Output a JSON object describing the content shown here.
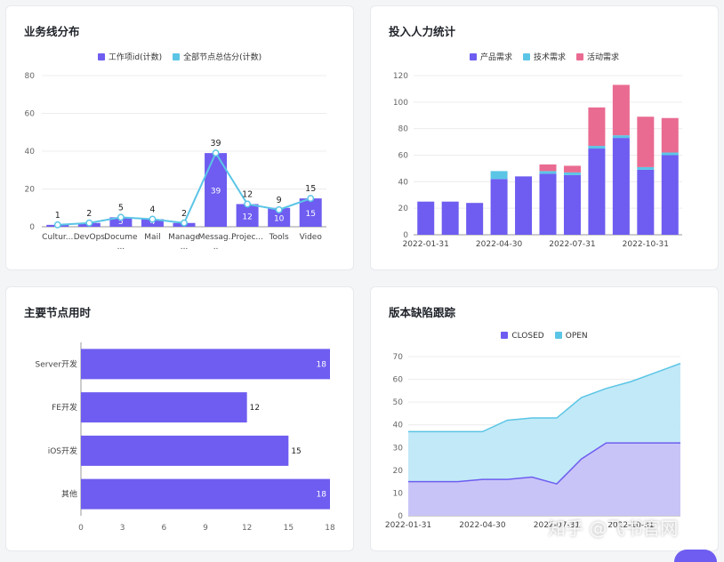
{
  "watermark": "知乎 @飞书官网",
  "colors": {
    "purple": "#6e5df0",
    "cyan": "#5bc5e6",
    "pink": "#e96b92",
    "light_purple": "#c9c2f7",
    "light_cyan": "#bfe8f7"
  },
  "cards": {
    "business": {
      "title": "业务线分布"
    },
    "manpower": {
      "title": "投入人力统计"
    },
    "nodes": {
      "title": "主要节点用时"
    },
    "defects": {
      "title": "版本缺陷跟踪"
    }
  },
  "chart_data": [
    {
      "id": "business",
      "type": "bar",
      "title": "业务线分布",
      "categories": [
        "Cultur...",
        "DevOps",
        "Docume\n...",
        "Mail",
        "Manage\n...",
        "Messag..\n..",
        "Projec...",
        "Tools",
        "Video"
      ],
      "series": [
        {
          "name": "工作项id(计数)",
          "type": "bar",
          "values": [
            1,
            2,
            5,
            4,
            2,
            39,
            12,
            10,
            15
          ],
          "color": "#6e5df0"
        },
        {
          "name": "全部节点总估分(计数)",
          "type": "line",
          "values": [
            1,
            2,
            5,
            4,
            2,
            39,
            12,
            9,
            15
          ],
          "color": "#5bc5e6"
        }
      ],
      "ylim": [
        0,
        80
      ],
      "yticks": [
        0,
        20,
        40,
        60,
        80
      ],
      "legend": "top-center",
      "grid": true
    },
    {
      "id": "manpower",
      "type": "bar",
      "stacked": true,
      "title": "投入人力统计",
      "categories": [
        "2022-01-31",
        "2022-02-28",
        "2022-03-31",
        "2022-04-30",
        "2022-05-31",
        "2022-06-30",
        "2022-07-31",
        "2022-08-31",
        "2022-09-30",
        "2022-10-31",
        "2022-11-30"
      ],
      "xtick_labels": [
        "2022-01-31",
        "2022-04-30",
        "2022-07-31",
        "2022-10-31"
      ],
      "series": [
        {
          "name": "产品需求",
          "values": [
            25,
            25,
            24,
            42,
            44,
            46,
            45,
            65,
            73,
            49,
            60
          ],
          "color": "#6e5df0"
        },
        {
          "name": "技术需求",
          "values": [
            0,
            0,
            0,
            6,
            0,
            2,
            2,
            2,
            2,
            2,
            2
          ],
          "color": "#5bc5e6"
        },
        {
          "name": "活动需求",
          "values": [
            0,
            0,
            0,
            0,
            0,
            5,
            5,
            29,
            38,
            38,
            26
          ],
          "color": "#e96b92"
        }
      ],
      "ylim": [
        0,
        120
      ],
      "yticks": [
        0,
        20,
        40,
        60,
        80,
        100,
        120
      ],
      "legend": "top-center",
      "grid": true
    },
    {
      "id": "nodes",
      "type": "bar",
      "orientation": "horizontal",
      "title": "主要节点用时",
      "categories": [
        "Server开发",
        "FE开发",
        "iOS开发",
        "其他"
      ],
      "values": [
        18,
        12,
        15,
        18
      ],
      "color": "#6e5df0",
      "xlim": [
        0,
        18
      ],
      "xticks": [
        0,
        3,
        6,
        9,
        12,
        15,
        18
      ],
      "grid": false
    },
    {
      "id": "defects",
      "type": "area",
      "stacked": false,
      "title": "版本缺陷跟踪",
      "x": [
        "2022-01-31",
        "2022-02-28",
        "2022-03-31",
        "2022-04-30",
        "2022-05-31",
        "2022-06-30",
        "2022-07-31",
        "2022-08-31",
        "2022-09-30",
        "2022-10-31",
        "2022-11-30",
        "2022-12-31"
      ],
      "xtick_labels": [
        "2022-01-31",
        "2022-04-30",
        "2022-07-31",
        "2022-10-31"
      ],
      "series": [
        {
          "name": "CLOSED",
          "values": [
            15,
            15,
            15,
            16,
            16,
            17,
            14,
            25,
            32,
            32,
            32,
            32
          ],
          "color": "#6e5df0"
        },
        {
          "name": "OPEN",
          "values": [
            37,
            37,
            37,
            37,
            42,
            43,
            43,
            52,
            56,
            59,
            63,
            67
          ],
          "color": "#5bc5e6"
        }
      ],
      "ylim": [
        0,
        70
      ],
      "yticks": [
        0,
        10,
        20,
        30,
        40,
        50,
        60,
        70
      ],
      "legend": "top-center",
      "grid": true
    }
  ]
}
